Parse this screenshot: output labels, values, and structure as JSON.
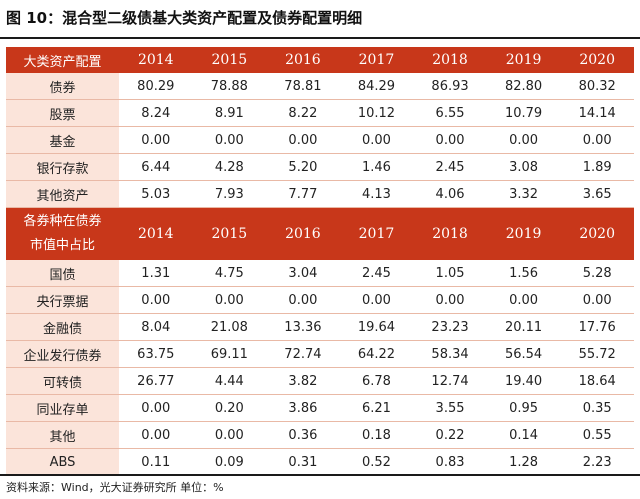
{
  "title": "图 10：混合型二级债基大类资产配置及债券配置明细",
  "table1": {
    "header": "大类资产配置",
    "years": [
      "2014",
      "2015",
      "2016",
      "2017",
      "2018",
      "2019",
      "2020"
    ],
    "rows": [
      {
        "label": "债券",
        "values": [
          "80.29",
          "78.88",
          "78.81",
          "84.29",
          "86.93",
          "82.80",
          "80.32"
        ]
      },
      {
        "label": "股票",
        "values": [
          "8.24",
          "8.91",
          "8.22",
          "10.12",
          "6.55",
          "10.79",
          "14.14"
        ]
      },
      {
        "label": "基金",
        "values": [
          "0.00",
          "0.00",
          "0.00",
          "0.00",
          "0.00",
          "0.00",
          "0.00"
        ]
      },
      {
        "label": "银行存款",
        "values": [
          "6.44",
          "4.28",
          "5.20",
          "1.46",
          "2.45",
          "3.08",
          "1.89"
        ]
      },
      {
        "label": "其他资产",
        "values": [
          "5.03",
          "7.93",
          "7.77",
          "4.13",
          "4.06",
          "3.32",
          "3.65"
        ]
      }
    ]
  },
  "table2": {
    "header_line1": "各券种在债券",
    "header_line2": "市值中占比",
    "years": [
      "2014",
      "2015",
      "2016",
      "2017",
      "2018",
      "2019",
      "2020"
    ],
    "rows": [
      {
        "label": "国债",
        "values": [
          "1.31",
          "4.75",
          "3.04",
          "2.45",
          "1.05",
          "1.56",
          "5.28"
        ]
      },
      {
        "label": "央行票据",
        "values": [
          "0.00",
          "0.00",
          "0.00",
          "0.00",
          "0.00",
          "0.00",
          "0.00"
        ]
      },
      {
        "label": "金融债",
        "values": [
          "8.04",
          "21.08",
          "13.36",
          "19.64",
          "23.23",
          "20.11",
          "17.76"
        ]
      },
      {
        "label": "企业发行债券",
        "values": [
          "63.75",
          "69.11",
          "72.74",
          "64.22",
          "58.34",
          "56.54",
          "55.72"
        ]
      },
      {
        "label": "可转债",
        "values": [
          "26.77",
          "4.44",
          "3.82",
          "6.78",
          "12.74",
          "19.40",
          "18.64"
        ]
      },
      {
        "label": "同业存单",
        "values": [
          "0.00",
          "0.20",
          "3.86",
          "6.21",
          "3.55",
          "0.95",
          "0.35"
        ]
      },
      {
        "label": "其他",
        "values": [
          "0.00",
          "0.00",
          "0.36",
          "0.18",
          "0.22",
          "0.14",
          "0.55"
        ]
      },
      {
        "label": "ABS",
        "values": [
          "0.11",
          "0.09",
          "0.31",
          "0.52",
          "0.83",
          "1.28",
          "2.23"
        ]
      }
    ]
  },
  "source": "资料来源：Wind，光大证券研究所  单位：%"
}
